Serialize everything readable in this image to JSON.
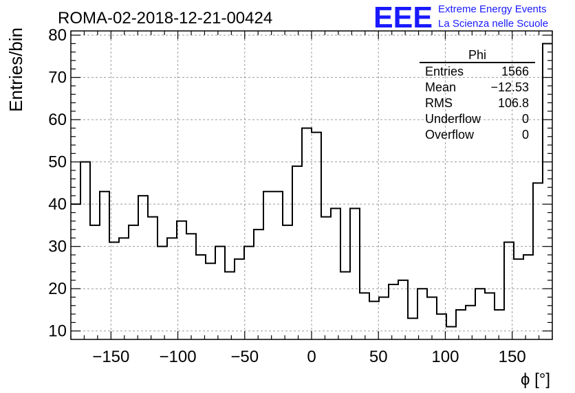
{
  "header": {
    "title": "ROMA-02-2018-12-21-00424",
    "logo_text": "EEE",
    "logo_line1": "Extreme Energy Events",
    "logo_line2": "La Scienza nelle Scuole",
    "logo_color": "#1a1aff"
  },
  "stats_box": {
    "name": "Phi",
    "rows": [
      {
        "label": "Entries",
        "value": "1566"
      },
      {
        "label": "Mean",
        "value": "−12.53"
      },
      {
        "label": "RMS",
        "value": "106.8"
      },
      {
        "label": "Underflow",
        "value": "0"
      },
      {
        "label": "Overflow",
        "value": "0"
      }
    ]
  },
  "chart_data": {
    "type": "histogram",
    "title": "ROMA-02-2018-12-21-00424",
    "xlabel": "ϕ [°]",
    "ylabel": "Entries/bin",
    "xlim": [
      -180,
      180
    ],
    "ylim": [
      8,
      81
    ],
    "bin_width": 7.2,
    "bin_edges_start": -180,
    "values": [
      40,
      50,
      35,
      43,
      31,
      32,
      35,
      42,
      37,
      30,
      32,
      36,
      33,
      28,
      26,
      30,
      24,
      27,
      30,
      34,
      43,
      43,
      35,
      49,
      58,
      57,
      37,
      39,
      24,
      39,
      19,
      17,
      18,
      21,
      22,
      13,
      20,
      18,
      14,
      11,
      15,
      16,
      20,
      19,
      15,
      31,
      27,
      28,
      45,
      78
    ],
    "x_ticks": [
      -150,
      -100,
      -50,
      0,
      50,
      100,
      150
    ],
    "x_tick_labels": [
      "−150",
      "−100",
      "−50",
      "0",
      "50",
      "100",
      "150"
    ],
    "y_ticks": [
      10,
      20,
      30,
      40,
      50,
      60,
      70,
      80
    ],
    "y_tick_labels": [
      "10",
      "20",
      "30",
      "40",
      "50",
      "60",
      "70",
      "80"
    ],
    "grid": true,
    "line_color": "#000000"
  }
}
